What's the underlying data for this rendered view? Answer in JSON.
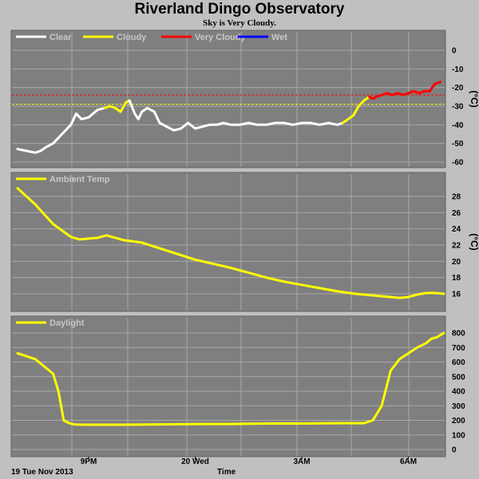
{
  "header": {
    "title": "Riverland Dingo Observatory",
    "subtitle": "Sky is Very Cloudy."
  },
  "footer": {
    "date_label": "19 Tue Nov 2013",
    "axis_title": "Time"
  },
  "colors": {
    "background": "#c0c0c0",
    "plot_area": "#7f7f7f",
    "grid": "#a8a8a8",
    "clear": "#ffffff",
    "cloudy": "#ffff00",
    "very_cloudy": "#ff0000",
    "wet": "#0000ff",
    "cloudy_threshold": "#ffff00",
    "very_cloudy_threshold": "#ff0000"
  },
  "chart_data": [
    {
      "type": "line",
      "ylabel": "(°C)",
      "ylim": [
        -60,
        5
      ],
      "yticks": [
        0,
        -10,
        -20,
        -30,
        -40,
        -50,
        -60
      ],
      "xlim": [
        0,
        24
      ],
      "x_ticks": [
        {
          "x": 4,
          "label": "9PM"
        },
        {
          "x": 10,
          "label": "20 Wed"
        },
        {
          "x": 16,
          "label": "3AM"
        },
        {
          "x": 22,
          "label": "6AM"
        }
      ],
      "thresholds": [
        {
          "value": -24,
          "color": "#ff0000"
        },
        {
          "value": -29,
          "color": "#ffff00"
        }
      ],
      "legend": [
        "Clear",
        "Cloudy",
        "Very Cloudy",
        "Wet"
      ],
      "legend_placement": "top-left",
      "series": [
        {
          "name": "Clear",
          "color": "#ffffff",
          "x": [
            0,
            0.5,
            1.0,
            1.3,
            1.6,
            2.0,
            2.5,
            3.0,
            3.3,
            3.6,
            4.0,
            4.5,
            4.9
          ],
          "y": [
            -53,
            -54,
            -55,
            -54,
            -52,
            -50,
            -45,
            -40,
            -34,
            -37,
            -36,
            -32,
            -31
          ]
        },
        {
          "name": "Cloudy",
          "color": "#ffff00",
          "x": [
            4.9,
            5.2,
            5.5,
            5.8,
            6.1,
            6.3
          ],
          "y": [
            -31,
            -30,
            -31,
            -33,
            -28,
            -27
          ]
        },
        {
          "name": "Clear",
          "color": "#ffffff",
          "x": [
            6.3,
            6.6,
            6.8,
            7.0,
            7.3,
            7.7,
            8.0,
            8.4,
            8.8,
            9.2,
            9.6,
            10.0,
            10.4,
            10.8,
            11.2,
            11.6,
            12.0,
            12.5,
            13.0,
            13.5,
            14.0,
            14.5,
            15.0,
            15.5,
            16.0,
            16.5,
            17.0,
            17.5,
            18.0,
            18.3
          ],
          "y": [
            -27,
            -34,
            -37,
            -33,
            -31,
            -33,
            -39,
            -41,
            -43,
            -42,
            -39,
            -42,
            -41,
            -40,
            -40,
            -39,
            -40,
            -40,
            -39,
            -40,
            -40,
            -39,
            -39,
            -40,
            -39,
            -39,
            -40,
            -39,
            -40,
            -39
          ]
        },
        {
          "name": "Cloudy",
          "color": "#ffff00",
          "x": [
            18.3,
            18.6,
            18.9,
            19.2,
            19.5,
            19.8
          ],
          "y": [
            -39,
            -37,
            -35,
            -30,
            -27,
            -25
          ]
        },
        {
          "name": "Very Cloudy",
          "color": "#ff0000",
          "x": [
            19.8,
            20.0,
            20.2,
            20.5,
            20.8,
            21.1,
            21.4,
            21.7,
            22.0,
            22.3,
            22.6,
            22.9,
            23.2,
            23.5,
            23.8
          ],
          "y": [
            -25,
            -26,
            -25,
            -24,
            -23,
            -24,
            -23,
            -24,
            -23,
            -22,
            -23,
            -22,
            -22,
            -18,
            -17
          ]
        }
      ]
    },
    {
      "type": "line",
      "ylabel": "(°C)",
      "ylim": [
        15,
        30
      ],
      "yticks": [
        16,
        18,
        20,
        22,
        24,
        26,
        28
      ],
      "xlim": [
        0,
        24
      ],
      "legend": [
        "Ambient Temp"
      ],
      "legend_placement": "top-left",
      "series": [
        {
          "name": "Ambient Temp",
          "color": "#ffff00",
          "x": [
            0,
            1,
            2,
            3,
            3.5,
            4.5,
            5,
            6,
            7,
            8,
            9,
            10,
            11,
            12,
            13,
            14,
            15,
            16,
            17,
            18,
            19,
            20,
            21,
            21.5,
            22,
            22.5,
            23,
            23.5,
            24
          ],
          "y": [
            29,
            27,
            24.6,
            23,
            22.7,
            22.9,
            23.2,
            22.6,
            22.3,
            21.6,
            20.9,
            20.2,
            19.7,
            19.2,
            18.6,
            18.0,
            17.5,
            17.1,
            16.7,
            16.3,
            16.0,
            15.8,
            15.6,
            15.5,
            15.6,
            15.9,
            16.1,
            16.1,
            16.0
          ]
        }
      ]
    },
    {
      "type": "line",
      "ylabel": "",
      "ylim": [
        0,
        850
      ],
      "yticks": [
        0,
        100,
        200,
        300,
        400,
        500,
        600,
        700,
        800
      ],
      "xlim": [
        0,
        24
      ],
      "legend": [
        "Daylight"
      ],
      "legend_placement": "top-left",
      "series": [
        {
          "name": "Daylight",
          "color": "#ffff00",
          "x": [
            0,
            0.5,
            1.0,
            1.5,
            2.0,
            2.3,
            2.6,
            2.9,
            3.2,
            3.6,
            4.0,
            6,
            8,
            10,
            12,
            14,
            16,
            18,
            19.5,
            20,
            20.5,
            21.0,
            21.5,
            22,
            22.5,
            23,
            23.3,
            23.6,
            24
          ],
          "y": [
            660,
            640,
            620,
            570,
            520,
            400,
            200,
            180,
            172,
            170,
            170,
            170,
            172,
            174,
            175,
            178,
            178,
            180,
            180,
            200,
            300,
            540,
            620,
            660,
            700,
            730,
            760,
            770,
            800
          ]
        }
      ]
    }
  ]
}
